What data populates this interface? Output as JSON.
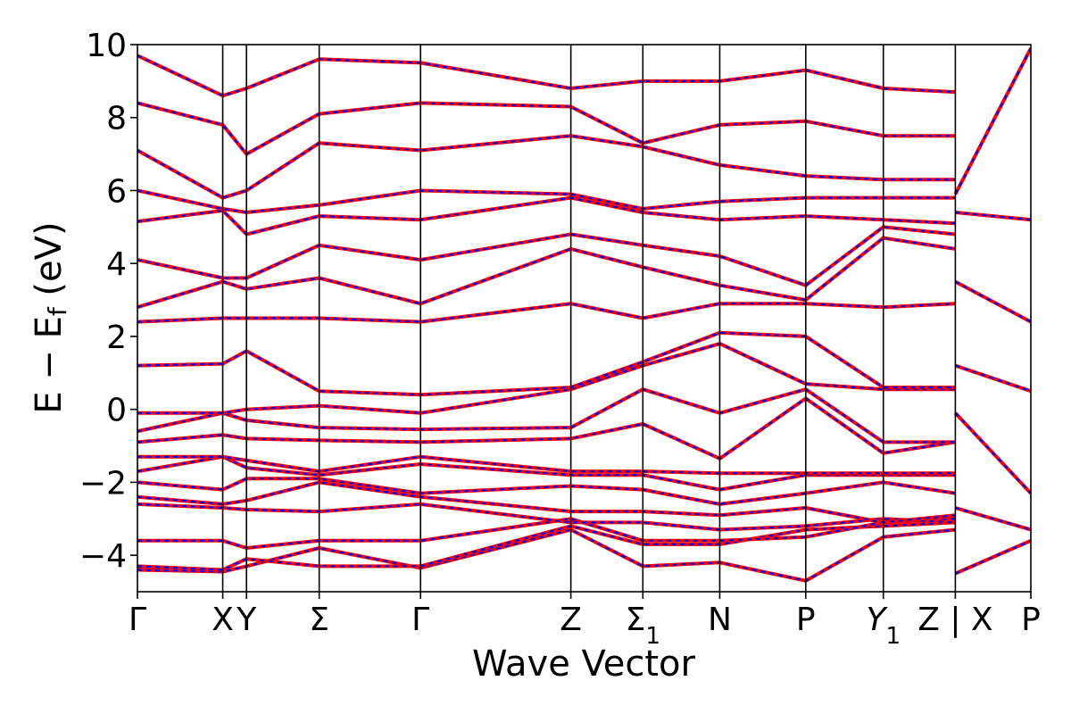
{
  "chart_data": {
    "type": "line",
    "xlabel": "Wave Vector",
    "ylabel_parts": [
      "E − E",
      "f",
      " (eV)"
    ],
    "ylim": [
      -5,
      10
    ],
    "yticks": [
      {
        "value": 10,
        "label": "10"
      },
      {
        "value": 8,
        "label": "8"
      },
      {
        "value": 6,
        "label": "6"
      },
      {
        "value": 4,
        "label": "4"
      },
      {
        "value": 2,
        "label": "2"
      },
      {
        "value": 0,
        "label": "0"
      },
      {
        "value": -2,
        "label": "−2"
      },
      {
        "value": -4,
        "label": "−4"
      }
    ],
    "xlim": [
      0,
      12.78
    ],
    "kpoints": [
      {
        "x": 0,
        "label": "Γ"
      },
      {
        "x": 1.22,
        "label": "X"
      },
      {
        "x": 1.56,
        "label": "Y"
      },
      {
        "x": 2.6,
        "label": "Σ"
      },
      {
        "x": 4.05,
        "label": "Γ"
      },
      {
        "x": 6.2,
        "label": "Z"
      },
      {
        "x": 7.23,
        "label": "Σ",
        "sub": "1"
      },
      {
        "x": 8.33,
        "label": "N"
      },
      {
        "x": 9.56,
        "label": "P"
      },
      {
        "x": 10.67,
        "label": "Y",
        "sub": "1",
        "italic": true
      },
      {
        "x": 11.7,
        "label": "Z | X"
      },
      {
        "x": 12.78,
        "label": "P"
      }
    ],
    "series_colors": {
      "primary": "#ff0000",
      "overlay": "#0000ff"
    },
    "bands": [
      [
        [
          0,
          -4.4
        ],
        [
          1.22,
          -4.45
        ],
        [
          1.56,
          -4.3
        ],
        [
          2.6,
          -3.8
        ],
        [
          4.05,
          -4.35
        ],
        [
          6.2,
          -3.3
        ],
        [
          7.23,
          -4.3
        ],
        [
          8.33,
          -4.2
        ],
        [
          9.56,
          -4.7
        ],
        [
          10.67,
          -3.5
        ],
        [
          11.7,
          -3.3
        ]
      ],
      [
        [
          0,
          -4.3
        ],
        [
          1.22,
          -4.4
        ],
        [
          1.56,
          -4.1
        ],
        [
          2.6,
          -4.3
        ],
        [
          4.05,
          -4.3
        ],
        [
          6.2,
          -3.2
        ],
        [
          7.23,
          -3.7
        ],
        [
          8.33,
          -3.7
        ],
        [
          9.56,
          -3.3
        ],
        [
          10.67,
          -3.2
        ],
        [
          11.7,
          -3.1
        ]
      ],
      [
        [
          0,
          -3.6
        ],
        [
          1.22,
          -3.6
        ],
        [
          1.56,
          -3.8
        ],
        [
          2.6,
          -3.6
        ],
        [
          4.05,
          -3.6
        ],
        [
          6.2,
          -3.0
        ],
        [
          7.23,
          -3.6
        ],
        [
          8.33,
          -3.6
        ],
        [
          9.56,
          -3.5
        ],
        [
          10.67,
          -3.1
        ],
        [
          11.7,
          -3.0
        ]
      ],
      [
        [
          0,
          -2.6
        ],
        [
          1.22,
          -2.7
        ],
        [
          1.56,
          -2.75
        ],
        [
          2.6,
          -2.8
        ],
        [
          4.05,
          -2.6
        ],
        [
          6.2,
          -3.1
        ],
        [
          7.23,
          -3.1
        ],
        [
          8.33,
          -3.3
        ],
        [
          9.56,
          -3.2
        ],
        [
          10.67,
          -3.0
        ],
        [
          11.7,
          -3.1
        ]
      ],
      [
        [
          0,
          -2.4
        ],
        [
          1.22,
          -2.6
        ],
        [
          1.56,
          -2.5
        ],
        [
          2.6,
          -2.0
        ],
        [
          4.05,
          -2.4
        ],
        [
          6.2,
          -2.8
        ],
        [
          7.23,
          -2.8
        ],
        [
          8.33,
          -2.9
        ],
        [
          9.56,
          -2.7
        ],
        [
          10.67,
          -3.1
        ],
        [
          11.7,
          -2.9
        ]
      ],
      [
        [
          0,
          -2.0
        ],
        [
          1.22,
          -2.2
        ],
        [
          1.56,
          -1.9
        ],
        [
          2.6,
          -1.9
        ],
        [
          4.05,
          -2.3
        ],
        [
          6.2,
          -2.1
        ],
        [
          7.23,
          -2.2
        ],
        [
          8.33,
          -2.6
        ],
        [
          9.56,
          -2.3
        ],
        [
          10.67,
          -2.0
        ],
        [
          11.7,
          -2.3
        ]
      ],
      [
        [
          0,
          -1.7
        ],
        [
          1.22,
          -1.3
        ],
        [
          1.56,
          -1.6
        ],
        [
          2.6,
          -1.8
        ],
        [
          4.05,
          -1.5
        ],
        [
          6.2,
          -1.8
        ],
        [
          7.23,
          -1.8
        ],
        [
          8.33,
          -2.2
        ],
        [
          9.56,
          -1.8
        ],
        [
          10.67,
          -1.8
        ],
        [
          11.7,
          -1.8
        ]
      ],
      [
        [
          0,
          -1.3
        ],
        [
          1.22,
          -1.3
        ],
        [
          1.56,
          -1.4
        ],
        [
          2.6,
          -1.7
        ],
        [
          4.05,
          -1.3
        ],
        [
          6.2,
          -1.7
        ],
        [
          7.23,
          -1.7
        ],
        [
          8.33,
          -1.75
        ],
        [
          9.56,
          -1.75
        ],
        [
          10.67,
          -1.75
        ],
        [
          11.7,
          -1.75
        ]
      ],
      [
        [
          0,
          -0.9
        ],
        [
          1.22,
          -0.7
        ],
        [
          1.56,
          -0.8
        ],
        [
          2.6,
          -0.85
        ],
        [
          4.05,
          -0.9
        ],
        [
          6.2,
          -0.8
        ],
        [
          7.23,
          -0.4
        ],
        [
          8.33,
          -1.35
        ],
        [
          9.56,
          0.3
        ],
        [
          10.67,
          -1.2
        ],
        [
          11.7,
          -0.9
        ]
      ],
      [
        [
          0,
          -0.6
        ],
        [
          1.22,
          -0.1
        ],
        [
          1.56,
          -0.3
        ],
        [
          2.6,
          -0.5
        ],
        [
          4.05,
          -0.55
        ],
        [
          6.2,
          -0.5
        ],
        [
          7.23,
          0.55
        ],
        [
          8.33,
          -0.1
        ],
        [
          9.56,
          0.55
        ],
        [
          10.67,
          -0.9
        ],
        [
          11.7,
          -0.9
        ]
      ],
      [
        [
          0,
          -0.1
        ],
        [
          1.22,
          -0.1
        ],
        [
          1.56,
          0.0
        ],
        [
          2.6,
          0.1
        ],
        [
          4.05,
          -0.1
        ],
        [
          6.2,
          0.55
        ],
        [
          7.23,
          1.2
        ],
        [
          8.33,
          1.8
        ],
        [
          9.56,
          0.7
        ],
        [
          10.67,
          0.55
        ],
        [
          11.7,
          0.55
        ]
      ],
      [
        [
          0,
          1.2
        ],
        [
          1.22,
          1.25
        ],
        [
          1.56,
          1.6
        ],
        [
          2.6,
          0.5
        ],
        [
          4.05,
          0.4
        ],
        [
          6.2,
          0.6
        ],
        [
          7.23,
          1.3
        ],
        [
          8.33,
          2.1
        ],
        [
          9.56,
          2.0
        ],
        [
          10.67,
          0.6
        ],
        [
          11.7,
          0.6
        ]
      ],
      [
        [
          0,
          2.4
        ],
        [
          1.22,
          2.5
        ],
        [
          1.56,
          2.5
        ],
        [
          2.6,
          2.5
        ],
        [
          4.05,
          2.4
        ],
        [
          6.2,
          2.9
        ],
        [
          7.23,
          2.5
        ],
        [
          8.33,
          2.9
        ],
        [
          9.56,
          2.9
        ],
        [
          10.67,
          2.8
        ],
        [
          11.7,
          2.9
        ]
      ],
      [
        [
          0,
          2.8
        ],
        [
          1.22,
          3.5
        ],
        [
          1.56,
          3.3
        ],
        [
          2.6,
          3.6
        ],
        [
          4.05,
          2.9
        ],
        [
          6.2,
          4.4
        ],
        [
          7.23,
          3.9
        ],
        [
          8.33,
          3.4
        ],
        [
          9.56,
          3.0
        ],
        [
          10.67,
          4.7
        ],
        [
          11.7,
          4.4
        ]
      ],
      [
        [
          0,
          4.1
        ],
        [
          1.22,
          3.6
        ],
        [
          1.56,
          3.6
        ],
        [
          2.6,
          4.5
        ],
        [
          4.05,
          4.1
        ],
        [
          6.2,
          4.8
        ],
        [
          7.23,
          4.5
        ],
        [
          8.33,
          4.2
        ],
        [
          9.56,
          3.4
        ],
        [
          10.67,
          5.0
        ],
        [
          11.7,
          4.8
        ]
      ],
      [
        [
          0,
          5.15
        ],
        [
          1.22,
          5.45
        ],
        [
          1.56,
          4.8
        ],
        [
          2.6,
          5.3
        ],
        [
          4.05,
          5.2
        ],
        [
          6.2,
          5.8
        ],
        [
          7.23,
          5.4
        ],
        [
          8.33,
          5.2
        ],
        [
          9.56,
          5.3
        ],
        [
          10.67,
          5.2
        ],
        [
          11.7,
          5.1
        ]
      ],
      [
        [
          0,
          6.0
        ],
        [
          1.22,
          5.5
        ],
        [
          1.56,
          5.4
        ],
        [
          2.6,
          5.6
        ],
        [
          4.05,
          6.0
        ],
        [
          6.2,
          5.9
        ],
        [
          7.23,
          5.5
        ],
        [
          8.33,
          5.7
        ],
        [
          9.56,
          5.8
        ],
        [
          10.67,
          5.8
        ],
        [
          11.7,
          5.8
        ]
      ],
      [
        [
          0,
          7.1
        ],
        [
          1.22,
          5.8
        ],
        [
          1.56,
          6.0
        ],
        [
          2.6,
          7.3
        ],
        [
          4.05,
          7.1
        ],
        [
          6.2,
          7.5
        ],
        [
          7.23,
          7.2
        ],
        [
          8.33,
          6.7
        ],
        [
          9.56,
          6.4
        ],
        [
          10.67,
          6.3
        ],
        [
          11.7,
          6.3
        ]
      ],
      [
        [
          0,
          8.4
        ],
        [
          1.22,
          7.8
        ],
        [
          1.56,
          7.0
        ],
        [
          2.6,
          8.1
        ],
        [
          4.05,
          8.4
        ],
        [
          6.2,
          8.3
        ],
        [
          7.23,
          7.3
        ],
        [
          8.33,
          7.8
        ],
        [
          9.56,
          7.9
        ],
        [
          10.67,
          7.5
        ],
        [
          11.7,
          7.5
        ]
      ],
      [
        [
          0,
          9.7
        ],
        [
          1.22,
          8.6
        ],
        [
          1.56,
          8.8
        ],
        [
          2.6,
          9.6
        ],
        [
          4.05,
          9.5
        ],
        [
          6.2,
          8.8
        ],
        [
          7.23,
          9.0
        ],
        [
          8.33,
          9.0
        ],
        [
          9.56,
          9.3
        ],
        [
          10.67,
          8.8
        ],
        [
          11.7,
          8.7
        ]
      ],
      [
        [
          11.7,
          -4.5
        ],
        [
          12.78,
          -3.6
        ]
      ],
      [
        [
          11.7,
          -2.7
        ],
        [
          12.78,
          -3.3
        ]
      ],
      [
        [
          11.7,
          -0.1
        ],
        [
          12.78,
          -2.3
        ]
      ],
      [
        [
          11.7,
          1.2
        ],
        [
          12.78,
          0.5
        ]
      ],
      [
        [
          11.7,
          3.5
        ],
        [
          12.78,
          2.4
        ]
      ],
      [
        [
          11.7,
          5.4
        ],
        [
          12.78,
          5.2
        ]
      ],
      [
        [
          11.7,
          5.9
        ],
        [
          12.78,
          9.9
        ]
      ]
    ]
  }
}
